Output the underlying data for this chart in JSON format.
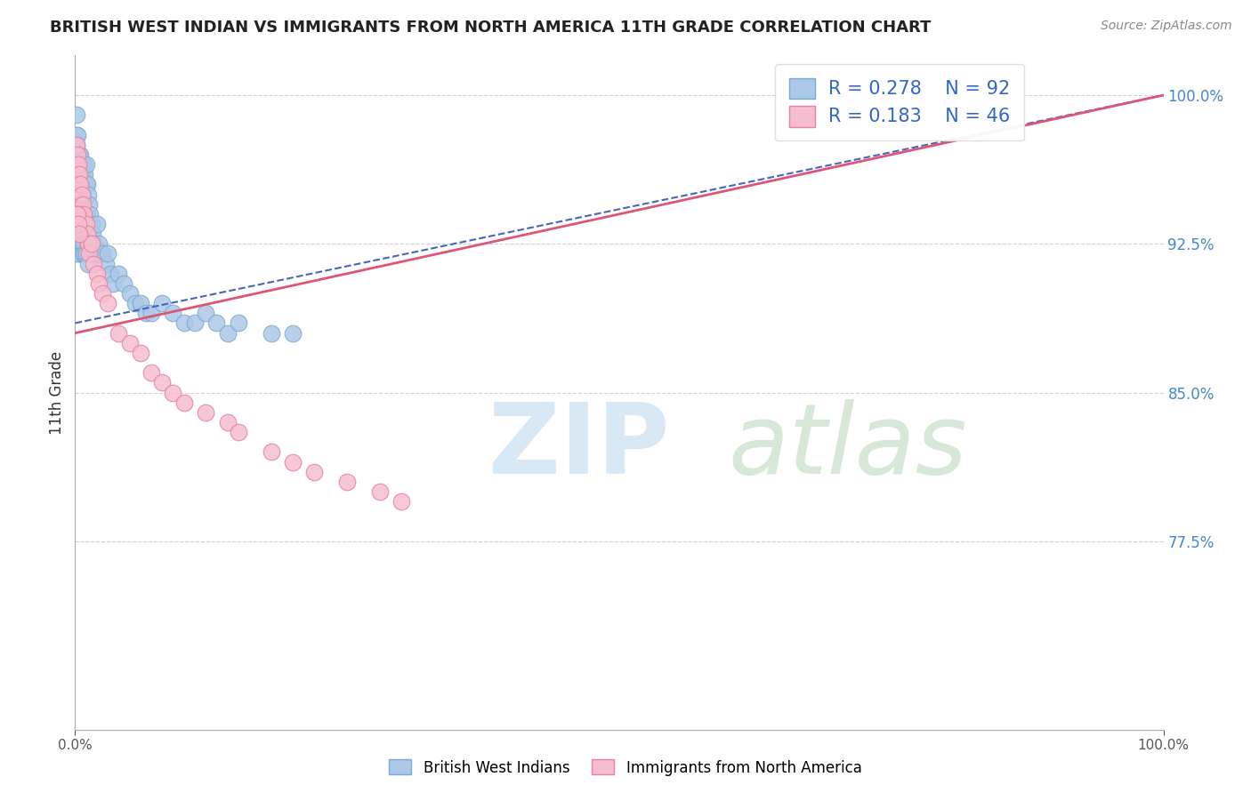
{
  "title": "BRITISH WEST INDIAN VS IMMIGRANTS FROM NORTH AMERICA 11TH GRADE CORRELATION CHART",
  "source": "Source: ZipAtlas.com",
  "ylabel": "11th Grade",
  "xlim": [
    0,
    1.0
  ],
  "ylim": [
    0.68,
    1.02
  ],
  "yticks": [
    0.775,
    0.85,
    0.925,
    1.0
  ],
  "ytick_labels": [
    "77.5%",
    "85.0%",
    "92.5%",
    "100.0%"
  ],
  "xtick_labels": [
    "0.0%",
    "100.0%"
  ],
  "series1_color": "#adc8e8",
  "series1_edge": "#7aaad0",
  "series2_color": "#f5bdd0",
  "series2_edge": "#e8809a",
  "trend1_color": "#4466bb",
  "trend2_color": "#dd5577",
  "R1": 0.278,
  "N1": 92,
  "R2": 0.183,
  "N2": 46,
  "background_color": "#ffffff",
  "grid_color": "#d0d0d0",
  "trend1_start_x": 0.0,
  "trend1_start_y": 0.885,
  "trend1_end_x": 1.0,
  "trend1_end_y": 1.0,
  "trend2_start_x": 0.0,
  "trend2_start_y": 0.88,
  "trend2_end_x": 1.0,
  "trend2_end_y": 1.0,
  "blue_x": [
    0.001,
    0.001,
    0.001,
    0.001,
    0.001,
    0.001,
    0.001,
    0.001,
    0.0015,
    0.0015,
    0.002,
    0.002,
    0.002,
    0.002,
    0.002,
    0.002,
    0.002,
    0.002,
    0.002,
    0.003,
    0.003,
    0.003,
    0.003,
    0.003,
    0.003,
    0.003,
    0.004,
    0.004,
    0.004,
    0.004,
    0.004,
    0.004,
    0.005,
    0.005,
    0.005,
    0.005,
    0.006,
    0.006,
    0.006,
    0.007,
    0.007,
    0.008,
    0.008,
    0.009,
    0.009,
    0.01,
    0.01,
    0.01,
    0.011,
    0.012,
    0.013,
    0.014,
    0.015,
    0.016,
    0.018,
    0.02,
    0.02,
    0.022,
    0.025,
    0.028,
    0.03,
    0.032,
    0.035,
    0.04,
    0.045,
    0.05,
    0.055,
    0.06,
    0.065,
    0.07,
    0.08,
    0.09,
    0.1,
    0.11,
    0.12,
    0.13,
    0.14,
    0.15,
    0.18,
    0.2,
    0.001,
    0.001,
    0.002,
    0.003,
    0.004,
    0.005,
    0.006,
    0.007,
    0.008,
    0.009,
    0.01,
    0.012
  ],
  "blue_y": [
    0.99,
    0.98,
    0.975,
    0.965,
    0.96,
    0.955,
    0.95,
    0.945,
    0.97,
    0.94,
    0.98,
    0.97,
    0.96,
    0.955,
    0.95,
    0.945,
    0.94,
    0.935,
    0.93,
    0.97,
    0.96,
    0.955,
    0.95,
    0.945,
    0.94,
    0.935,
    0.97,
    0.96,
    0.955,
    0.94,
    0.93,
    0.92,
    0.97,
    0.96,
    0.94,
    0.92,
    0.965,
    0.955,
    0.945,
    0.96,
    0.95,
    0.965,
    0.955,
    0.96,
    0.94,
    0.965,
    0.955,
    0.94,
    0.955,
    0.95,
    0.945,
    0.94,
    0.935,
    0.93,
    0.925,
    0.935,
    0.92,
    0.925,
    0.92,
    0.915,
    0.92,
    0.91,
    0.905,
    0.91,
    0.905,
    0.9,
    0.895,
    0.895,
    0.89,
    0.89,
    0.895,
    0.89,
    0.885,
    0.885,
    0.89,
    0.885,
    0.88,
    0.885,
    0.88,
    0.88,
    0.93,
    0.92,
    0.935,
    0.93,
    0.925,
    0.93,
    0.925,
    0.92,
    0.925,
    0.92,
    0.92,
    0.915
  ],
  "pink_x": [
    0.001,
    0.001,
    0.001,
    0.002,
    0.002,
    0.002,
    0.003,
    0.003,
    0.004,
    0.004,
    0.005,
    0.005,
    0.006,
    0.007,
    0.008,
    0.009,
    0.01,
    0.011,
    0.012,
    0.013,
    0.015,
    0.017,
    0.02,
    0.022,
    0.025,
    0.03,
    0.04,
    0.05,
    0.06,
    0.07,
    0.08,
    0.09,
    0.1,
    0.12,
    0.14,
    0.15,
    0.18,
    0.2,
    0.22,
    0.25,
    0.28,
    0.3,
    0.001,
    0.002,
    0.003,
    0.004
  ],
  "pink_y": [
    0.975,
    0.965,
    0.955,
    0.97,
    0.96,
    0.95,
    0.965,
    0.955,
    0.96,
    0.945,
    0.955,
    0.94,
    0.95,
    0.945,
    0.94,
    0.935,
    0.935,
    0.93,
    0.925,
    0.92,
    0.925,
    0.915,
    0.91,
    0.905,
    0.9,
    0.895,
    0.88,
    0.875,
    0.87,
    0.86,
    0.855,
    0.85,
    0.845,
    0.84,
    0.835,
    0.83,
    0.82,
    0.815,
    0.81,
    0.805,
    0.8,
    0.795,
    0.94,
    0.94,
    0.935,
    0.93
  ]
}
